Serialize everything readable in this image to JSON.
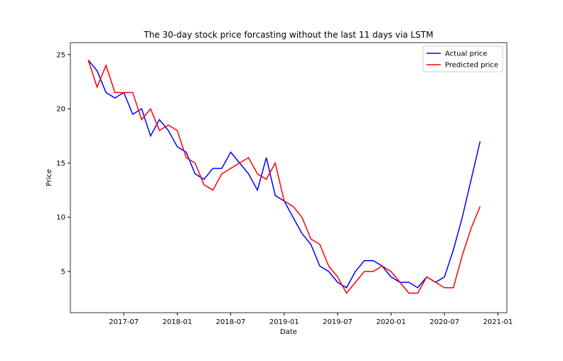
{
  "chart_data": {
    "type": "line",
    "title": "The 30-day stock price forcasting without the last 11 days via LSTM",
    "x_label": "Date",
    "y_label": "Price",
    "x": [
      "2017-03",
      "2017-04",
      "2017-05",
      "2017-06",
      "2017-07",
      "2017-08",
      "2017-09",
      "2017-10",
      "2017-11",
      "2017-12",
      "2018-01",
      "2018-02",
      "2018-03",
      "2018-04",
      "2018-05",
      "2018-06",
      "2018-07",
      "2018-08",
      "2018-09",
      "2018-10",
      "2018-11",
      "2018-12",
      "2019-01",
      "2019-02",
      "2019-03",
      "2019-04",
      "2019-05",
      "2019-06",
      "2019-07",
      "2019-08",
      "2019-09",
      "2019-10",
      "2019-11",
      "2019-12",
      "2020-01",
      "2020-02",
      "2020-03",
      "2020-04",
      "2020-05",
      "2020-06",
      "2020-07",
      "2020-08",
      "2020-09",
      "2020-10",
      "2020-11"
    ],
    "series": [
      {
        "name": "Actual price",
        "color": "#0000ff",
        "values": [
          24.5,
          23.5,
          21.5,
          21.0,
          21.5,
          19.5,
          20.0,
          17.5,
          19.0,
          18.0,
          16.5,
          16.0,
          14.0,
          13.5,
          14.5,
          14.5,
          16.0,
          15.0,
          14.0,
          12.5,
          15.5,
          12.0,
          11.5,
          10.0,
          8.5,
          7.5,
          5.5,
          5.0,
          4.0,
          3.5,
          5.0,
          6.0,
          6.0,
          5.5,
          4.5,
          4.0,
          4.0,
          3.5,
          4.5,
          4.0,
          4.5,
          7.0,
          10.0,
          13.5,
          17.0
        ]
      },
      {
        "name": "Predicted price",
        "color": "#ff0000",
        "values": [
          24.5,
          22.0,
          24.0,
          21.5,
          21.5,
          21.5,
          19.0,
          20.0,
          18.0,
          18.5,
          18.0,
          15.5,
          15.0,
          13.0,
          12.5,
          14.0,
          14.5,
          15.0,
          15.5,
          14.0,
          13.5,
          15.0,
          11.5,
          11.0,
          10.0,
          8.0,
          7.5,
          5.5,
          4.5,
          3.0,
          4.0,
          5.0,
          5.0,
          5.5,
          5.0,
          4.0,
          3.0,
          3.0,
          4.5,
          4.0,
          3.5,
          3.5,
          6.5,
          9.0,
          11.0
        ]
      }
    ],
    "xlim": [
      "2017-01",
      "2021-02"
    ],
    "xticks": [
      "2017-07",
      "2018-01",
      "2018-07",
      "2019-01",
      "2019-07",
      "2020-01",
      "2020-07",
      "2021-01"
    ],
    "ylim": [
      1.2,
      26.1
    ],
    "yticks": [
      5,
      10,
      15,
      20,
      25
    ],
    "legend": "upper right"
  }
}
